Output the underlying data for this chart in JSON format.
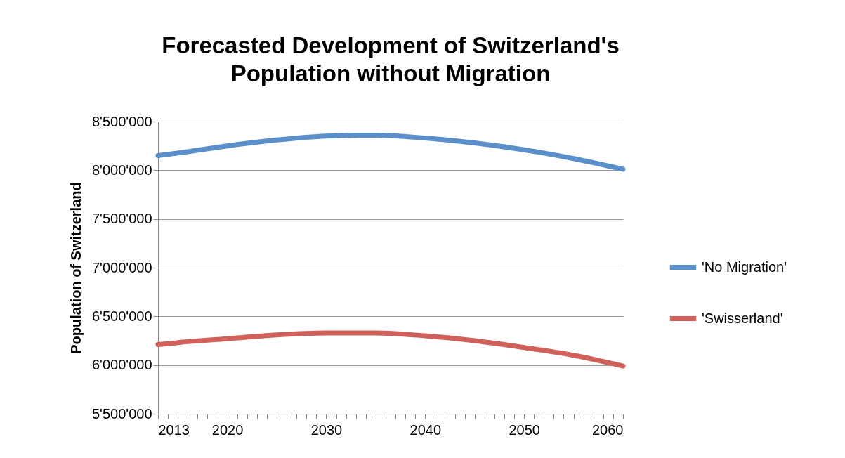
{
  "chart_data": {
    "type": "line",
    "title": "Forecasted Development of Switzerland's Population without Migration",
    "ylabel": "Population of Switzerland",
    "x": [
      2013,
      2016,
      2020,
      2025,
      2030,
      2035,
      2040,
      2045,
      2050,
      2055,
      2060
    ],
    "series": [
      {
        "name": "'No Migration'",
        "color": "#5b8fc9",
        "values": [
          8150000,
          8190000,
          8250000,
          8310000,
          8350000,
          8360000,
          8330000,
          8280000,
          8210000,
          8120000,
          8010000
        ]
      },
      {
        "name": "'Swisserland'",
        "color": "#d0605a",
        "values": [
          6210000,
          6240000,
          6270000,
          6310000,
          6330000,
          6330000,
          6300000,
          6250000,
          6180000,
          6100000,
          5990000
        ]
      }
    ],
    "xlim": [
      2013,
      2060
    ],
    "xticks": [
      2013,
      {
        "value": 2014,
        "label": null
      },
      {
        "value": 2015,
        "label": null
      },
      {
        "value": 2016,
        "label": null
      },
      {
        "value": 2017,
        "label": null
      },
      {
        "value": 2018,
        "label": null
      },
      {
        "value": 2019,
        "label": null
      },
      2020,
      {
        "value": 2021,
        "label": null
      },
      {
        "value": 2022,
        "label": null
      },
      {
        "value": 2023,
        "label": null
      },
      {
        "value": 2024,
        "label": null
      },
      {
        "value": 2025,
        "label": null
      },
      {
        "value": 2026,
        "label": null
      },
      {
        "value": 2027,
        "label": null
      },
      {
        "value": 2028,
        "label": null
      },
      {
        "value": 2029,
        "label": null
      },
      2030,
      {
        "value": 2031,
        "label": null
      },
      {
        "value": 2032,
        "label": null
      },
      {
        "value": 2033,
        "label": null
      },
      {
        "value": 2034,
        "label": null
      },
      {
        "value": 2035,
        "label": null
      },
      {
        "value": 2036,
        "label": null
      },
      {
        "value": 2037,
        "label": null
      },
      {
        "value": 2038,
        "label": null
      },
      {
        "value": 2039,
        "label": null
      },
      2040,
      {
        "value": 2041,
        "label": null
      },
      {
        "value": 2042,
        "label": null
      },
      {
        "value": 2043,
        "label": null
      },
      {
        "value": 2044,
        "label": null
      },
      {
        "value": 2045,
        "label": null
      },
      {
        "value": 2046,
        "label": null
      },
      {
        "value": 2047,
        "label": null
      },
      {
        "value": 2048,
        "label": null
      },
      {
        "value": 2049,
        "label": null
      },
      2050,
      {
        "value": 2051,
        "label": null
      },
      {
        "value": 2052,
        "label": null
      },
      {
        "value": 2053,
        "label": null
      },
      {
        "value": 2054,
        "label": null
      },
      {
        "value": 2055,
        "label": null
      },
      {
        "value": 2056,
        "label": null
      },
      {
        "value": 2057,
        "label": null
      },
      {
        "value": 2058,
        "label": null
      },
      {
        "value": 2059,
        "label": null
      },
      2060
    ],
    "ylim": [
      5500000,
      8500000
    ],
    "yticks": [
      {
        "value": 5500000,
        "label": "5'500'000"
      },
      {
        "value": 6000000,
        "label": "6'000'000"
      },
      {
        "value": 6500000,
        "label": "6'500'000"
      },
      {
        "value": 7000000,
        "label": "7'000'000"
      },
      {
        "value": 7500000,
        "label": "7'500'000"
      },
      {
        "value": 8000000,
        "label": "8'000'000"
      },
      {
        "value": 8500000,
        "label": "8'500'000"
      }
    ],
    "grid": "y",
    "legend": "right",
    "marker": "none",
    "line_style": "solid"
  }
}
